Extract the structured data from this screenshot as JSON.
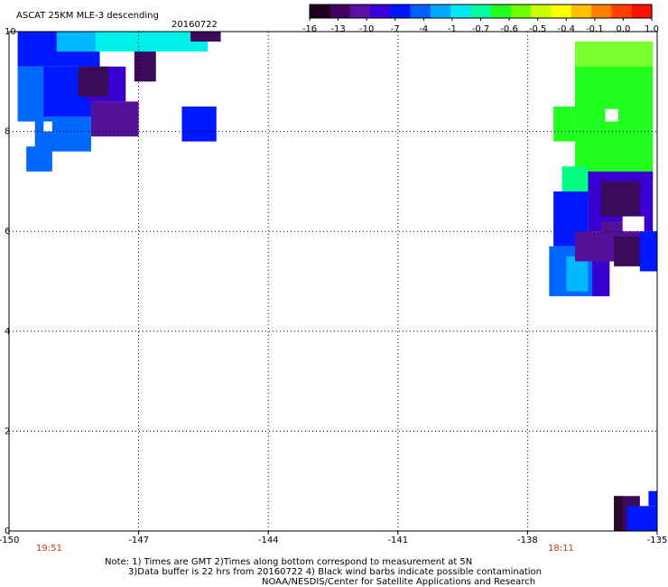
{
  "title": "ASCAT 25KM MLE-3 descending",
  "date": "20160722",
  "colorbar": {
    "labels": [
      "-16",
      "-13",
      "-10",
      "-7",
      "-4",
      "-1",
      "-0.7",
      "-0.6",
      "-0.5",
      "-0.4",
      "-0.1",
      "0.0",
      "1.0"
    ],
    "colors": [
      "#200020",
      "#400060",
      "#5a10a0",
      "#3a00d8",
      "#0014ff",
      "#0060ff",
      "#00a8ff",
      "#00e8f0",
      "#00ffa0",
      "#20ff20",
      "#70ff00",
      "#c8ff00",
      "#ffff00",
      "#ffc000",
      "#ff8000",
      "#ff4000",
      "#ff1000"
    ]
  },
  "axes": {
    "x_ticks": [
      "-150",
      "-147",
      "-144",
      "-141",
      "-138",
      "-135"
    ],
    "x_values": [
      -150,
      -147,
      -144,
      -141,
      -138,
      -135
    ],
    "y_ticks": [
      "0",
      "2",
      "4",
      "6",
      "8",
      "10"
    ],
    "y_values": [
      0,
      2,
      4,
      6,
      8,
      10
    ],
    "xlim": [
      -150,
      -135
    ],
    "ylim": [
      0,
      10
    ],
    "grid": "dotted"
  },
  "pass_times": [
    "19:51",
    "18:11"
  ],
  "notes": [
    "Note: 1) Times are GMT 2)Times along bottom correspond to measurement at 5N",
    "3)Data buffer is 22 hrs from 20160722 4) Black wind barbs indicate possible contamination",
    "NOAA/NESDIS/Center for Satellite Applications and Research"
  ],
  "color_key": {
    "k0": "#2a0a2a",
    "k1": "#3c0a5a",
    "k2": "#55109a",
    "k3": "#3800d0",
    "k4": "#0018ff",
    "k5": "#0068ff",
    "k6": "#00b8ff",
    "k7": "#00f0ee",
    "k8": "#00ff80",
    "k9": "#20ff20",
    "k10": "#7aff30"
  },
  "swaths": [
    {
      "lon": [
        -149.8,
        -147.9
      ],
      "lat": [
        9.3,
        10.0
      ],
      "level": "k4"
    },
    {
      "lon": [
        -148.9,
        -147.9
      ],
      "lat": [
        9.6,
        10.0
      ],
      "level": "k6"
    },
    {
      "lon": [
        -149.8,
        -149.1
      ],
      "lat": [
        8.2,
        9.3
      ],
      "level": "k5"
    },
    {
      "lon": [
        -149.2,
        -148.1
      ],
      "lat": [
        8.3,
        9.3
      ],
      "level": "k4"
    },
    {
      "lon": [
        -148.2,
        -147.3
      ],
      "lat": [
        8.6,
        9.3
      ],
      "level": "k3"
    },
    {
      "lon": [
        -148.4,
        -147.7
      ],
      "lat": [
        8.7,
        9.3
      ],
      "level": "k1"
    },
    {
      "lon": [
        -148.1,
        -147.0
      ],
      "lat": [
        7.9,
        8.6
      ],
      "level": "k2"
    },
    {
      "lon": [
        -147.1,
        -146.6
      ],
      "lat": [
        9.0,
        9.7
      ],
      "level": "k1"
    },
    {
      "lon": [
        -149.4,
        -148.1
      ],
      "lat": [
        7.6,
        8.3
      ],
      "level": "k5"
    },
    {
      "lon": [
        -149.6,
        -149.0
      ],
      "lat": [
        7.2,
        7.7
      ],
      "level": "k5"
    },
    {
      "lon": [
        -146.0,
        -145.2
      ],
      "lat": [
        7.8,
        8.5
      ],
      "level": "k4"
    },
    {
      "lon": [
        -148.0,
        -145.4
      ],
      "lat": [
        9.6,
        10.0
      ],
      "level": "k7"
    },
    {
      "lon": [
        -145.8,
        -145.1
      ],
      "lat": [
        9.8,
        10.0
      ],
      "level": "k1"
    },
    {
      "lon": [
        -136.9,
        -135.1
      ],
      "lat": [
        7.0,
        9.8
      ],
      "level": "k9"
    },
    {
      "lon": [
        -137.4,
        -136.9
      ],
      "lat": [
        7.8,
        8.5
      ],
      "level": "k9"
    },
    {
      "lon": [
        -136.9,
        -135.1
      ],
      "lat": [
        9.3,
        9.8
      ],
      "level": "k10"
    },
    {
      "lon": [
        -137.2,
        -136.6
      ],
      "lat": [
        6.6,
        7.3
      ],
      "level": "k8"
    },
    {
      "lon": [
        -137.4,
        -136.6
      ],
      "lat": [
        5.7,
        6.8
      ],
      "level": "k4"
    },
    {
      "lon": [
        -136.6,
        -135.1
      ],
      "lat": [
        6.0,
        7.2
      ],
      "level": "k3"
    },
    {
      "lon": [
        -136.3,
        -135.4
      ],
      "lat": [
        6.3,
        7.0
      ],
      "level": "k1"
    },
    {
      "lon": [
        -136.3,
        -135.3
      ],
      "lat": [
        5.4,
        6.2
      ],
      "level": "k2"
    },
    {
      "lon": [
        -136.0,
        -135.3
      ],
      "lat": [
        5.3,
        5.9
      ],
      "level": "k1"
    },
    {
      "lon": [
        -137.5,
        -136.4
      ],
      "lat": [
        4.7,
        5.7
      ],
      "level": "k5"
    },
    {
      "lon": [
        -137.1,
        -136.6
      ],
      "lat": [
        4.8,
        5.5
      ],
      "level": "k6"
    },
    {
      "lon": [
        -136.9,
        -136.0
      ],
      "lat": [
        5.4,
        6.0
      ],
      "level": "k2"
    },
    {
      "lon": [
        -136.5,
        -136.1
      ],
      "lat": [
        4.7,
        5.4
      ],
      "level": "k3"
    },
    {
      "lon": [
        -135.4,
        -135.0
      ],
      "lat": [
        5.2,
        6.0
      ],
      "level": "k4"
    },
    {
      "lon": [
        -136.0,
        -135.4
      ],
      "lat": [
        0.0,
        0.7
      ],
      "level": "k1"
    },
    {
      "lon": [
        -136.0,
        -135.8
      ],
      "lat": [
        0.0,
        0.7
      ],
      "level": "k0"
    },
    {
      "lon": [
        -135.7,
        -135.0
      ],
      "lat": [
        0.0,
        0.5
      ],
      "level": "k4"
    },
    {
      "lon": [
        -135.2,
        -135.0
      ],
      "lat": [
        0.5,
        0.8
      ],
      "level": "k4"
    }
  ]
}
